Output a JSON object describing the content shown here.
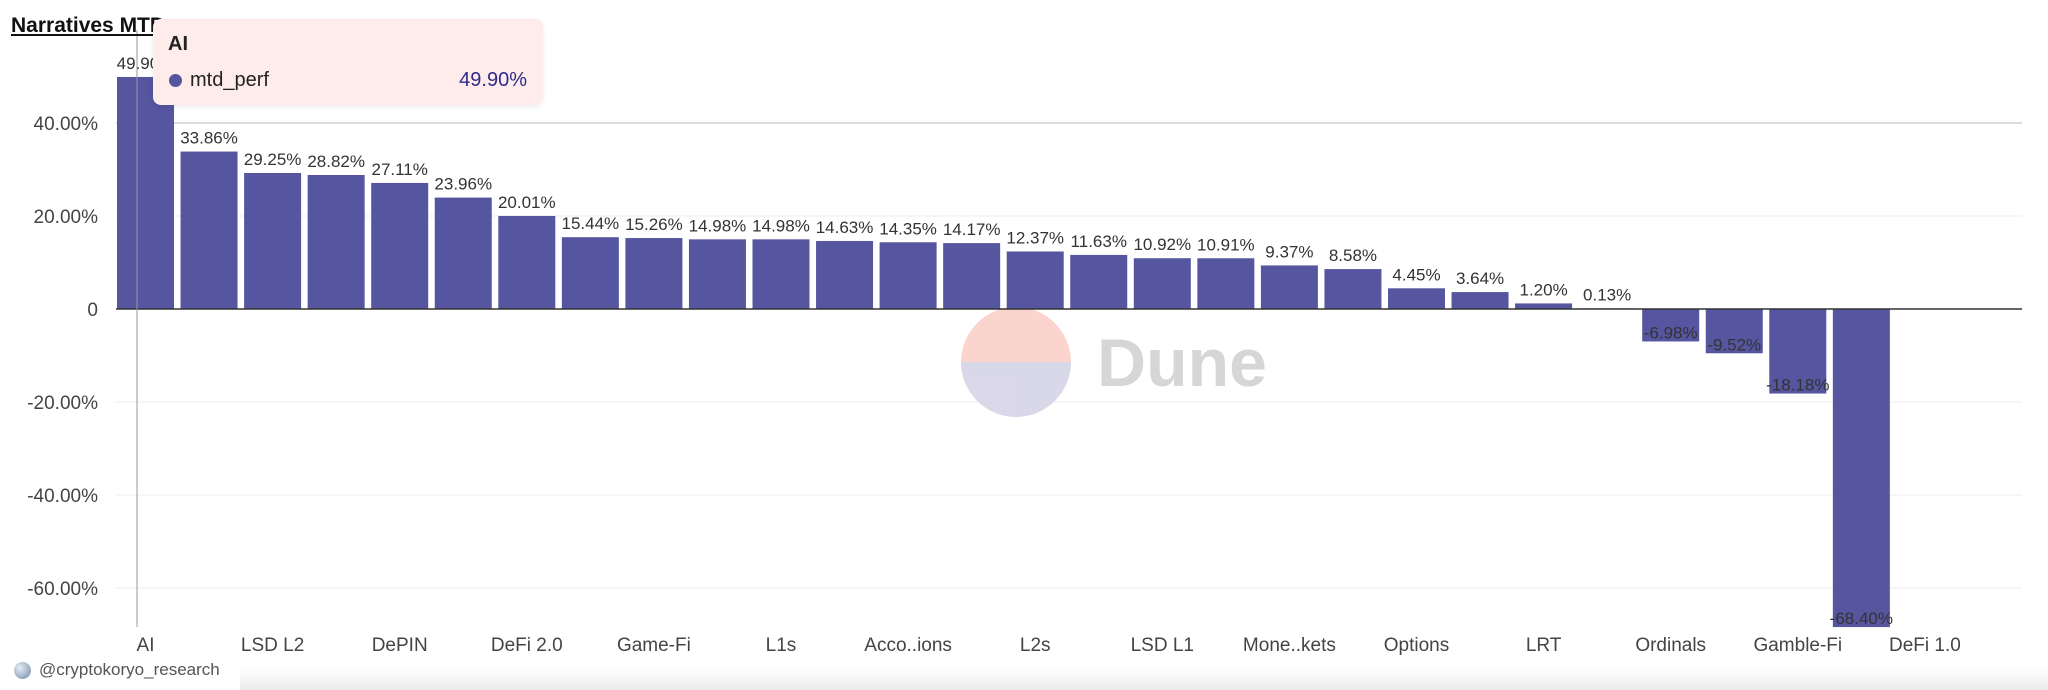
{
  "title": "Narratives MTD",
  "credit": "@cryptokoryo_research",
  "watermark": "Dune",
  "colors": {
    "bar": "#5555a0",
    "grid": "#eeeeee",
    "axis": "#333333",
    "tooltip_bg": "#fdece9"
  },
  "tooltip": {
    "category": "AI",
    "series": "mtd_perf",
    "value": "49.90%"
  },
  "chart_data": {
    "type": "bar",
    "title": "Narratives MTD",
    "xlabel": "",
    "ylabel": "",
    "ylim": [
      -68.4,
      52
    ],
    "yticks": [
      40,
      20,
      0,
      -20,
      -40,
      -60
    ],
    "ytick_labels": [
      "40.00%",
      "20.00%",
      "0",
      "-20.00%",
      "-40.00%",
      "-60.00%"
    ],
    "series": [
      {
        "name": "mtd_perf"
      }
    ],
    "bars": [
      {
        "value": 49.9,
        "label": "49.90%",
        "category": "AI"
      },
      {
        "value": 33.86,
        "label": "33.86%",
        "category": ""
      },
      {
        "value": 29.25,
        "label": "29.25%",
        "category": "LSD L2"
      },
      {
        "value": 28.82,
        "label": "28.82%",
        "category": ""
      },
      {
        "value": 27.11,
        "label": "27.11%",
        "category": "DePIN"
      },
      {
        "value": 23.96,
        "label": "23.96%",
        "category": ""
      },
      {
        "value": 20.01,
        "label": "20.01%",
        "category": "DeFi 2.0"
      },
      {
        "value": 15.44,
        "label": "15.44%",
        "category": ""
      },
      {
        "value": 15.26,
        "label": "15.26%",
        "category": "Game-Fi"
      },
      {
        "value": 14.98,
        "label": "14.98%",
        "category": ""
      },
      {
        "value": 14.98,
        "label": "14.98%",
        "category": "L1s"
      },
      {
        "value": 14.63,
        "label": "14.63%",
        "category": ""
      },
      {
        "value": 14.35,
        "label": "14.35%",
        "category": "Acco..ions"
      },
      {
        "value": 14.17,
        "label": "14.17%",
        "category": ""
      },
      {
        "value": 12.37,
        "label": "12.37%",
        "category": "L2s"
      },
      {
        "value": 11.63,
        "label": "11.63%",
        "category": ""
      },
      {
        "value": 10.92,
        "label": "10.92%",
        "category": "LSD L1"
      },
      {
        "value": 10.91,
        "label": "10.91%",
        "category": ""
      },
      {
        "value": 9.37,
        "label": "9.37%",
        "category": "Mone..kets"
      },
      {
        "value": 8.58,
        "label": "8.58%",
        "category": ""
      },
      {
        "value": 4.45,
        "label": "4.45%",
        "category": "Options"
      },
      {
        "value": 3.64,
        "label": "3.64%",
        "category": ""
      },
      {
        "value": 1.2,
        "label": "1.20%",
        "category": "LRT"
      },
      {
        "value": 0.13,
        "label": "0.13%",
        "category": ""
      },
      {
        "value": -6.98,
        "label": "-6.98%",
        "category": "Ordinals"
      },
      {
        "value": -9.52,
        "label": "-9.52%",
        "category": ""
      },
      {
        "value": -18.18,
        "label": "-18.18%",
        "category": "Gamble-Fi"
      },
      {
        "value": -68.4,
        "label": "-68.40%",
        "category": ""
      },
      {
        "value": 0,
        "label": "",
        "category": "DeFi 1.0"
      }
    ]
  }
}
